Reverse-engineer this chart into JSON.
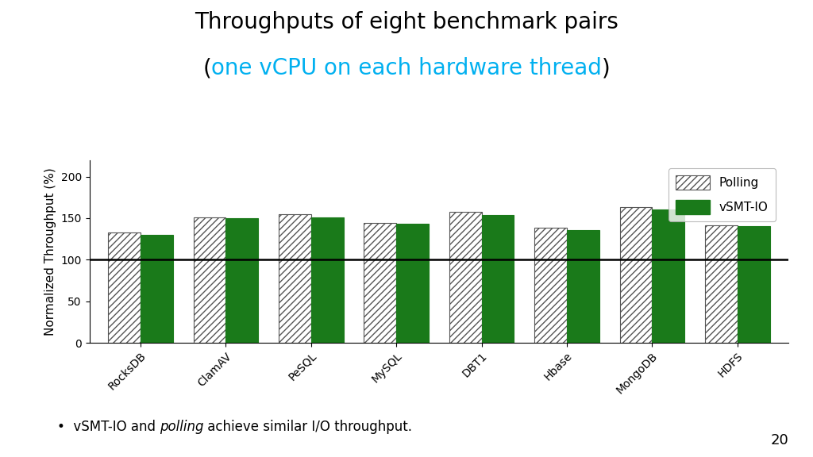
{
  "title_line1": "Throughputs of eight benchmark pairs",
  "title_line2_open": "(",
  "title_line2_mid": "one vCPU on each hardware thread",
  "title_line2_close": ")",
  "title_color1": "#000000",
  "title_color2": "#00b0f0",
  "categories": [
    "RocksDB",
    "ClamAV",
    "PeSQL",
    "MySQL",
    "DBT1",
    "Hbase",
    "MongoDB",
    "HDFS"
  ],
  "polling_values": [
    133,
    151,
    155,
    144,
    158,
    138,
    163,
    141
  ],
  "vsmt_values": [
    130,
    150,
    151,
    143,
    154,
    136,
    160,
    140
  ],
  "ylabel": "Normalized Throughput (%)",
  "ylim": [
    0,
    220
  ],
  "yticks": [
    0,
    50,
    100,
    150,
    200
  ],
  "hline_y": 100,
  "polling_color": "#ffffff",
  "polling_edge": "#555555",
  "vsmt_color": "#1a7a1a",
  "vsmt_edge": "#1a7a1a",
  "bar_width": 0.38,
  "legend_polling": "Polling",
  "legend_vsmt": "vSMT-IO",
  "slide_number": "20",
  "background_color": "#ffffff",
  "hatch_pattern": "////"
}
